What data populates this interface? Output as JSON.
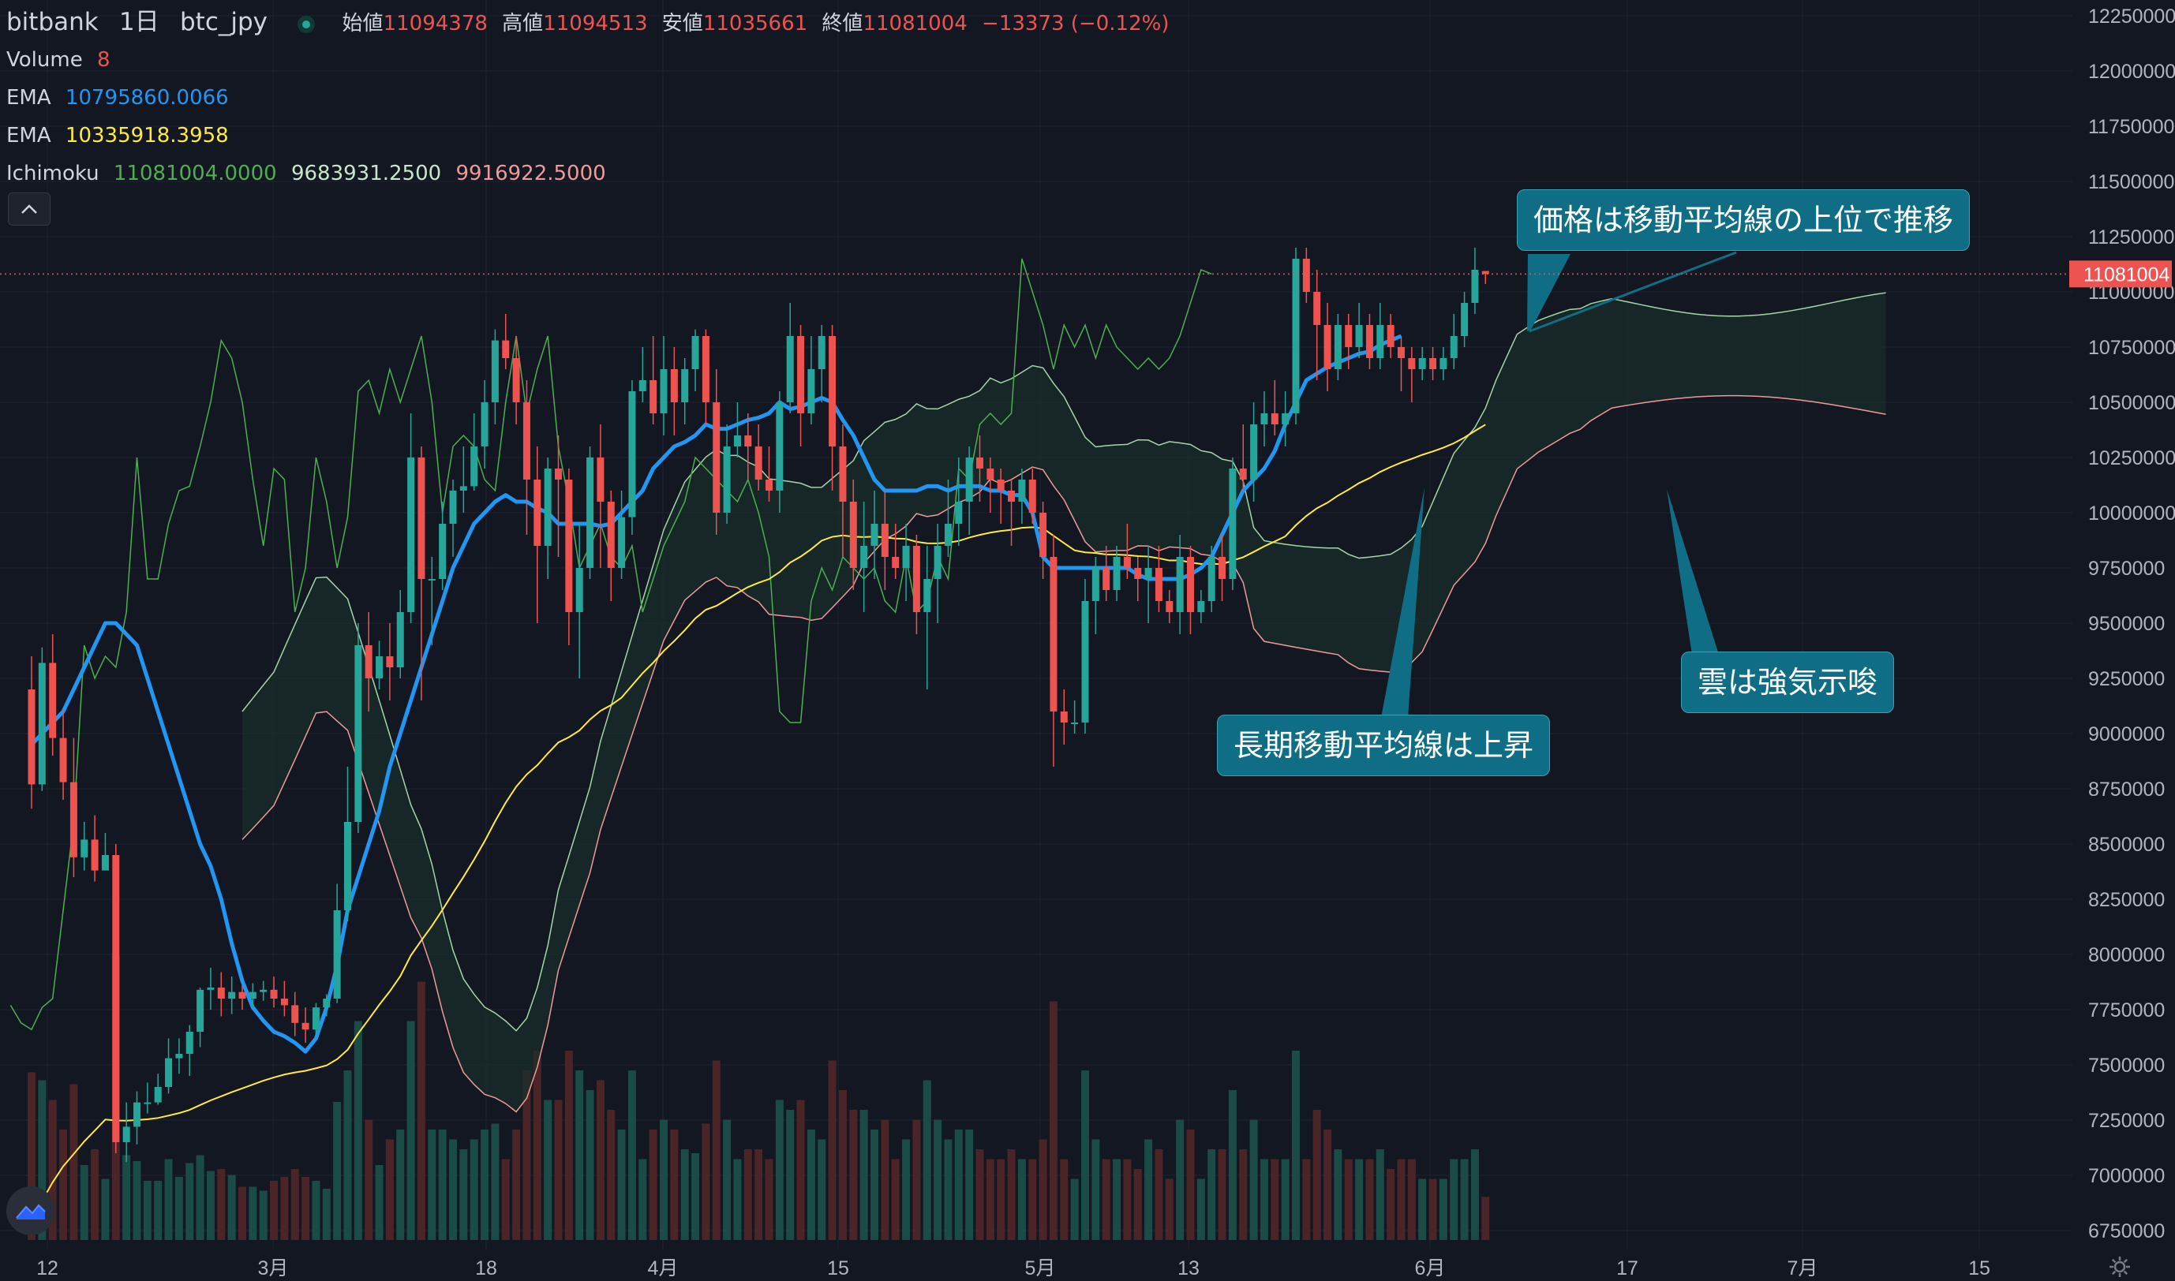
{
  "header": {
    "exchange": "bitbank",
    "interval": "1日",
    "symbol": "btc_jpy",
    "open_label": "始値",
    "open_value": "11094378",
    "high_label": "高値",
    "high_value": "11094513",
    "low_label": "安値",
    "low_value": "11035661",
    "close_label": "終値",
    "close_value": "11081004",
    "change": "−13373 (−0.12%)"
  },
  "indicators": {
    "volume": {
      "label": "Volume",
      "value": "8"
    },
    "ema_fast": {
      "label": "EMA",
      "value": "10795860.0066",
      "color": "#2196f3"
    },
    "ema_slow": {
      "label": "EMA",
      "value": "10335918.3958",
      "color": "#ffeb3b"
    },
    "ichimoku": {
      "label": "Ichimoku",
      "v1": "11081004.0000",
      "v2": "9683931.2500",
      "v3": "9916922.5000",
      "c1": "#4caf50",
      "c2": "#a5d6a7",
      "c3": "#ef9a9a"
    }
  },
  "annotations": {
    "price_above_ma": "価格は移動平均線の上位で推移",
    "long_ma_rising": "長期移動平均線は上昇",
    "cloud_bullish": "雲は強気示唆"
  },
  "colors": {
    "background": "#131722",
    "up": "#26a69a",
    "down": "#ef5350",
    "callout": "#0f6e86"
  },
  "chart_data": {
    "type": "candlestick",
    "symbol": "btc_jpy",
    "interval": "1日",
    "y_axis": {
      "ticks": [
        "12250000",
        "12000000",
        "11750000",
        "11500000",
        "11250000",
        "11000000",
        "10750000",
        "10500000",
        "10250000",
        "10000000",
        "9750000",
        "9500000",
        "9250000",
        "9000000",
        "8750000",
        "8500000",
        "8250000",
        "8000000",
        "7750000",
        "7500000",
        "7250000",
        "7000000",
        "6750000"
      ],
      "range": [
        6750000,
        12250000
      ]
    },
    "x_axis": {
      "ticks": [
        "12",
        "3月",
        "18",
        "4月",
        "15",
        "5月",
        "13",
        "6月",
        "17",
        "7月",
        "15"
      ]
    },
    "last_price": {
      "label": "11081004",
      "value": 11081004
    },
    "candles": [
      [
        9200000,
        8770000,
        9350000,
        8660000
      ],
      [
        8770000,
        9320000,
        9390000,
        8740000
      ],
      [
        9320000,
        8980000,
        9450000,
        8900000
      ],
      [
        8980000,
        8780000,
        9100000,
        8700000
      ],
      [
        8780000,
        8440000,
        8980000,
        8350000
      ],
      [
        8440000,
        8520000,
        8600000,
        8380000
      ],
      [
        8520000,
        8380000,
        8630000,
        8330000
      ],
      [
        8380000,
        8450000,
        8550000,
        8400000
      ],
      [
        8450000,
        7150000,
        8500000,
        7100000
      ],
      [
        7150000,
        7220000,
        7330000,
        7060000
      ],
      [
        7220000,
        7330000,
        7380000,
        7140000
      ],
      [
        7330000,
        7330000,
        7420000,
        7280000
      ],
      [
        7330000,
        7400000,
        7460000,
        7320000
      ],
      [
        7400000,
        7530000,
        7620000,
        7370000
      ],
      [
        7530000,
        7550000,
        7620000,
        7460000
      ],
      [
        7550000,
        7650000,
        7680000,
        7450000
      ],
      [
        7650000,
        7840000,
        7850000,
        7580000
      ],
      [
        7840000,
        7850000,
        7940000,
        7750000
      ],
      [
        7850000,
        7800000,
        7920000,
        7720000
      ],
      [
        7800000,
        7830000,
        7900000,
        7730000
      ],
      [
        7830000,
        7800000,
        7860000,
        7750000
      ],
      [
        7800000,
        7830000,
        7870000,
        7760000
      ],
      [
        7830000,
        7840000,
        7880000,
        7790000
      ],
      [
        7840000,
        7800000,
        7900000,
        7760000
      ],
      [
        7800000,
        7770000,
        7880000,
        7720000
      ],
      [
        7770000,
        7690000,
        7830000,
        7630000
      ],
      [
        7690000,
        7660000,
        7760000,
        7600000
      ],
      [
        7660000,
        7760000,
        7780000,
        7640000
      ],
      [
        7760000,
        7800000,
        7820000,
        7720000
      ],
      [
        7800000,
        8200000,
        8320000,
        7780000
      ],
      [
        8200000,
        8600000,
        8850000,
        8150000
      ],
      [
        8600000,
        9400000,
        9500000,
        8550000
      ],
      [
        9400000,
        9250000,
        9550000,
        9100000
      ],
      [
        9250000,
        9350000,
        9420000,
        9200000
      ],
      [
        9350000,
        9300000,
        9500000,
        9150000
      ],
      [
        9300000,
        9550000,
        9650000,
        9250000
      ],
      [
        9550000,
        10250000,
        10450000,
        9500000
      ],
      [
        10250000,
        9700000,
        10300000,
        9150000
      ],
      [
        9700000,
        9700000,
        9800000,
        9400000
      ],
      [
        9700000,
        9950000,
        10050000,
        9650000
      ],
      [
        9950000,
        10100000,
        10150000,
        9800000
      ],
      [
        10100000,
        10120000,
        10300000,
        10000000
      ],
      [
        10120000,
        10300000,
        10450000,
        10100000
      ],
      [
        10300000,
        10500000,
        10600000,
        10200000
      ],
      [
        10500000,
        10780000,
        10830000,
        10400000
      ],
      [
        10780000,
        10700000,
        10900000,
        10650000
      ],
      [
        10700000,
        10500000,
        10800000,
        10400000
      ],
      [
        10500000,
        10150000,
        10600000,
        9900000
      ],
      [
        10150000,
        9850000,
        10300000,
        9500000
      ],
      [
        9850000,
        10200000,
        10250000,
        9700000
      ],
      [
        10200000,
        10150000,
        10350000,
        9800000
      ],
      [
        10150000,
        9550000,
        10200000,
        9400000
      ],
      [
        9550000,
        9750000,
        9950000,
        9250000
      ],
      [
        9750000,
        10250000,
        10300000,
        9700000
      ],
      [
        10250000,
        10050000,
        10400000,
        9750000
      ],
      [
        10050000,
        9750000,
        10100000,
        9600000
      ],
      [
        9750000,
        9980000,
        10100000,
        9700000
      ],
      [
        9980000,
        10550000,
        10600000,
        9900000
      ],
      [
        10550000,
        10600000,
        10750000,
        10500000
      ],
      [
        10600000,
        10450000,
        10800000,
        10400000
      ],
      [
        10450000,
        10650000,
        10800000,
        10350000
      ],
      [
        10650000,
        10500000,
        10750000,
        10350000
      ],
      [
        10500000,
        10650000,
        10700000,
        10400000
      ],
      [
        10650000,
        10800000,
        10830000,
        10550000
      ],
      [
        10800000,
        10500000,
        10830000,
        10400000
      ],
      [
        10500000,
        10000000,
        10650000,
        9900000
      ],
      [
        10000000,
        10300000,
        10400000,
        9950000
      ],
      [
        10300000,
        10350000,
        10500000,
        10250000
      ],
      [
        10350000,
        10300000,
        10450000,
        10150000
      ],
      [
        10300000,
        10150000,
        10400000,
        10100000
      ],
      [
        10150000,
        10100000,
        10300000,
        10050000
      ],
      [
        10100000,
        10500000,
        10550000,
        10000000
      ],
      [
        10500000,
        10800000,
        10950000,
        10450000
      ],
      [
        10800000,
        10450000,
        10850000,
        10300000
      ],
      [
        10450000,
        10650000,
        10800000,
        10400000
      ],
      [
        10650000,
        10800000,
        10850000,
        10500000
      ],
      [
        10800000,
        10300000,
        10850000,
        10100000
      ],
      [
        10300000,
        10050000,
        10400000,
        9800000
      ],
      [
        10050000,
        9750000,
        10150000,
        9650000
      ],
      [
        9750000,
        9850000,
        10050000,
        9550000
      ],
      [
        9850000,
        9950000,
        10100000,
        9700000
      ],
      [
        9950000,
        9800000,
        10100000,
        9650000
      ],
      [
        9800000,
        9750000,
        9950000,
        9700000
      ],
      [
        9750000,
        9850000,
        9950000,
        9600000
      ],
      [
        9850000,
        9550000,
        9900000,
        9450000
      ],
      [
        9550000,
        9700000,
        9850000,
        9200000
      ],
      [
        9700000,
        9850000,
        9950000,
        9500000
      ],
      [
        9850000,
        9950000,
        10150000,
        9800000
      ],
      [
        9950000,
        10050000,
        10250000,
        9850000
      ],
      [
        10050000,
        10250000,
        10300000,
        9900000
      ],
      [
        10250000,
        10200000,
        10350000,
        10050000
      ],
      [
        10200000,
        10150000,
        10250000,
        10000000
      ],
      [
        10150000,
        10100000,
        10200000,
        9950000
      ],
      [
        10100000,
        10050000,
        10150000,
        9850000
      ],
      [
        10050000,
        10150000,
        10200000,
        9950000
      ],
      [
        10150000,
        10000000,
        10200000,
        9950000
      ],
      [
        10000000,
        9800000,
        10050000,
        9700000
      ],
      [
        9800000,
        9100000,
        9900000,
        8850000
      ],
      [
        9100000,
        9050000,
        9200000,
        8950000
      ],
      [
        9050000,
        9050000,
        9150000,
        9000000
      ],
      [
        9050000,
        9600000,
        9700000,
        9000000
      ],
      [
        9600000,
        9750000,
        9800000,
        9450000
      ],
      [
        9750000,
        9650000,
        9850000,
        9600000
      ],
      [
        9650000,
        9800000,
        9850000,
        9600000
      ],
      [
        9800000,
        9750000,
        9950000,
        9700000
      ],
      [
        9750000,
        9700000,
        9800000,
        9600000
      ],
      [
        9700000,
        9750000,
        9850000,
        9500000
      ],
      [
        9750000,
        9600000,
        9850000,
        9550000
      ],
      [
        9600000,
        9550000,
        9650000,
        9500000
      ],
      [
        9550000,
        9800000,
        9900000,
        9450000
      ],
      [
        9800000,
        9550000,
        9850000,
        9450000
      ],
      [
        9550000,
        9600000,
        9650000,
        9500000
      ],
      [
        9600000,
        9800000,
        9850000,
        9550000
      ],
      [
        9800000,
        9700000,
        9900000,
        9600000
      ],
      [
        9700000,
        10200000,
        10250000,
        9650000
      ],
      [
        10200000,
        10150000,
        10400000,
        10100000
      ],
      [
        10150000,
        10400000,
        10500000,
        10050000
      ],
      [
        10400000,
        10450000,
        10550000,
        10300000
      ],
      [
        10450000,
        10400000,
        10600000,
        10350000
      ],
      [
        10400000,
        10450000,
        10550000,
        10300000
      ],
      [
        10450000,
        11150000,
        11200000,
        10400000
      ],
      [
        11150000,
        11000000,
        11200000,
        10950000
      ],
      [
        11000000,
        10850000,
        11100000,
        10600000
      ],
      [
        10850000,
        10650000,
        10950000,
        10550000
      ],
      [
        10650000,
        10850000,
        10900000,
        10600000
      ],
      [
        10850000,
        10750000,
        10900000,
        10650000
      ],
      [
        10750000,
        10850000,
        10950000,
        10700000
      ],
      [
        10850000,
        10700000,
        10900000,
        10650000
      ],
      [
        10700000,
        10850000,
        10950000,
        10650000
      ],
      [
        10850000,
        10750000,
        10900000,
        10700000
      ],
      [
        10750000,
        10700000,
        10800000,
        10550000
      ],
      [
        10700000,
        10650000,
        10750000,
        10500000
      ],
      [
        10650000,
        10700000,
        10750000,
        10600000
      ],
      [
        10700000,
        10650000,
        10750000,
        10600000
      ],
      [
        10650000,
        10700000,
        10750000,
        10600000
      ],
      [
        10700000,
        10800000,
        10900000,
        10650000
      ],
      [
        10800000,
        10950000,
        11000000,
        10750000
      ],
      [
        10950000,
        11100000,
        11200000,
        10900000
      ],
      [
        11094378,
        11081004,
        11094513,
        11035661
      ]
    ],
    "ema_fast": [
      8950000,
      9000000,
      9050000,
      9100000,
      9200000,
      9300000,
      9400000,
      9500000,
      9500000,
      9450000,
      9400000,
      9250000,
      9100000,
      8950000,
      8800000,
      8650000,
      8500000,
      8400000,
      8250000,
      8050000,
      7880000,
      7760000,
      7700000,
      7650000,
      7630000,
      7600000,
      7560000,
      7620000,
      7760000,
      7950000,
      8200000,
      8350000,
      8500000,
      8650000,
      8850000,
      9000000,
      9150000,
      9300000,
      9450000,
      9600000,
      9750000,
      9850000,
      9950000,
      10000000,
      10050000,
      10080000,
      10050000,
      10050000,
      10020000,
      10000000,
      9950000,
      9950000,
      9950000,
      9950000,
      9940000,
      9950000,
      10000000,
      10050000,
      10100000,
      10200000,
      10250000,
      10300000,
      10320000,
      10350000,
      10400000,
      10380000,
      10380000,
      10400000,
      10420000,
      10430000,
      10450000,
      10500000,
      10470000,
      10480000,
      10500000,
      10520000,
      10500000,
      10420000,
      10350000,
      10250000,
      10150000,
      10100000,
      10100000,
      10100000,
      10100000,
      10120000,
      10120000,
      10100000,
      10120000,
      10120000,
      10120000,
      10100000,
      10100000,
      10080000,
      10080000,
      10000000,
      9800000,
      9750000,
      9750000,
      9750000,
      9750000,
      9750000,
      9750000,
      9750000,
      9750000,
      9720000,
      9700000,
      9700000,
      9700000,
      9700000,
      9720000,
      9750000,
      9800000,
      9900000,
      10000000,
      10100000,
      10150000,
      10200000,
      10280000,
      10400000,
      10500000,
      10600000,
      10630000,
      10660000,
      10680000,
      10700000,
      10720000,
      10730000,
      10760000,
      10780000,
      10800000
    ]
  }
}
